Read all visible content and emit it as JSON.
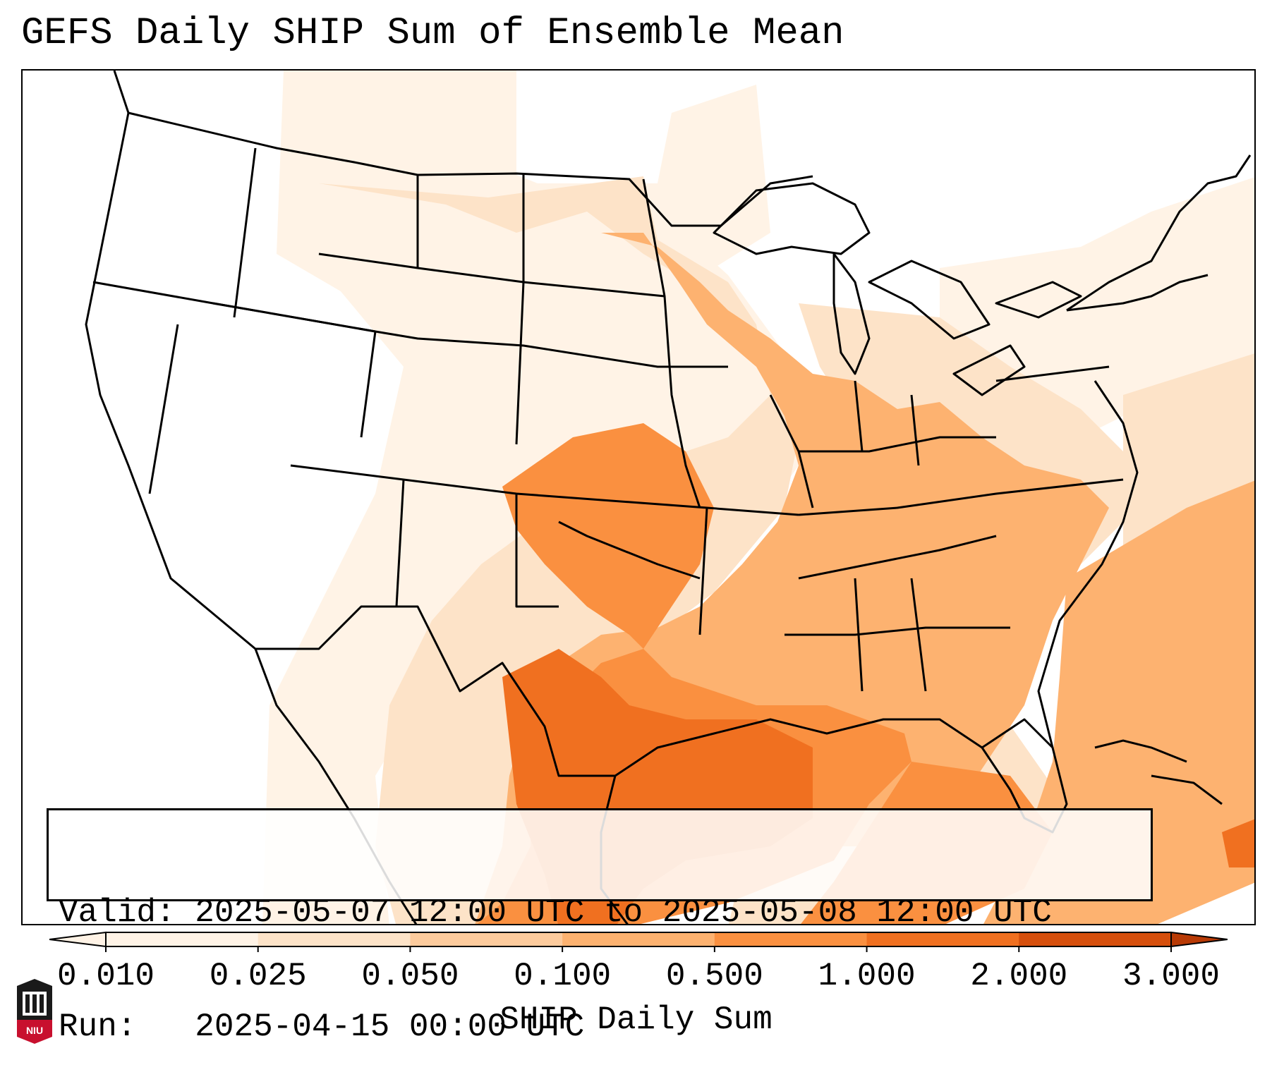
{
  "header": {
    "title": "GEFS Daily SHIP Sum of Ensemble Mean"
  },
  "info": {
    "valid_label": "Valid:",
    "valid_value": "2025-05-07 12:00 UTC to 2025-05-08 12:00 UTC",
    "run_label": "Run:",
    "run_value": "2025-04-15 00:00 UTC"
  },
  "colorbar": {
    "label": "SHIP Daily Sum",
    "ticks": [
      "0.010",
      "0.025",
      "0.050",
      "0.100",
      "0.500",
      "1.000",
      "2.000",
      "3.000"
    ],
    "colors": [
      "#fff3e6",
      "#fde3c8",
      "#fdcb9d",
      "#fdb270",
      "#fa9040",
      "#f07020",
      "#d64f0c",
      "#b83a05"
    ]
  },
  "logo": {
    "text": "NIU"
  },
  "colors": {
    "border": "#000000",
    "background": "#ffffff"
  }
}
